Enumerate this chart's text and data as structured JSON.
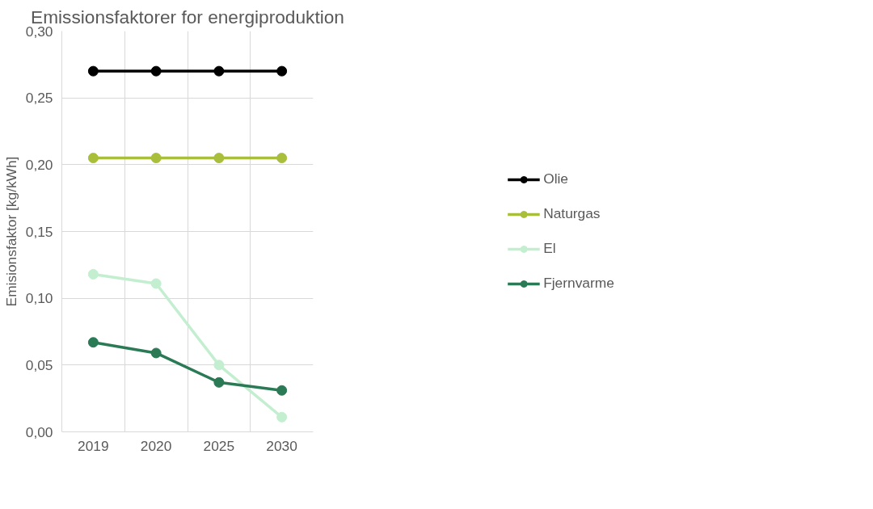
{
  "chart_data": {
    "type": "line",
    "title": "Emissionsfaktorer for energiproduktion",
    "ylabel": "Emisionsfaktor [kg/kWh]",
    "categories": [
      "2019",
      "2020",
      "2025",
      "2030"
    ],
    "series": [
      {
        "name": "Olie",
        "color": "#000000",
        "values": [
          0.27,
          0.27,
          0.27,
          0.27
        ]
      },
      {
        "name": "Naturgas",
        "color": "#a9be3b",
        "values": [
          0.205,
          0.205,
          0.205,
          0.205
        ]
      },
      {
        "name": "El",
        "color": "#c3efd0",
        "values": [
          0.118,
          0.111,
          0.05,
          0.011
        ]
      },
      {
        "name": "Fjernvarme",
        "color": "#2a7a56",
        "values": [
          0.067,
          0.059,
          0.037,
          0.031
        ]
      }
    ],
    "ylim": [
      0,
      0.3
    ],
    "yticks": [
      {
        "value": 0,
        "label": "0,00"
      },
      {
        "value": 0.05,
        "label": "0,05"
      },
      {
        "value": 0.1,
        "label": "0,10"
      },
      {
        "value": 0.15,
        "label": "0,15"
      },
      {
        "value": 0.2,
        "label": "0,20"
      },
      {
        "value": 0.25,
        "label": "0,25"
      },
      {
        "value": 0.3,
        "label": "0,30"
      }
    ],
    "grid": true,
    "legend": "right",
    "marker": "circle",
    "line_style": "solid"
  }
}
